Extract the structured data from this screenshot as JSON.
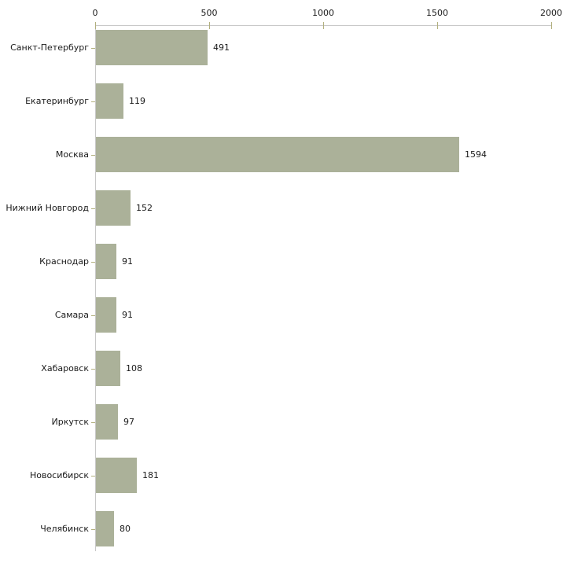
{
  "chart_data": {
    "type": "bar",
    "orientation": "horizontal",
    "title": "",
    "categories": [
      "Санкт-Петербург",
      "Екатеринбург",
      "Москва",
      "Нижний Новгород",
      "Краснодар",
      "Самара",
      "Хабаровск",
      "Иркутск",
      "Новосибирск",
      "Челябинск"
    ],
    "values": [
      491,
      119,
      1594,
      152,
      91,
      91,
      108,
      97,
      181,
      80
    ],
    "xlim": [
      0,
      2000
    ],
    "xticks": [
      0,
      500,
      1000,
      1500,
      2000
    ],
    "xtick_labels": [
      "0",
      "500",
      "1000",
      "1500",
      "2000"
    ],
    "axis_position": "top",
    "grid": false,
    "legend": false,
    "colors": {
      "bar_fill": "#abb199",
      "axis_line": "#c8c8c8",
      "tick_mark": "#b2b07e",
      "text": "#1a1a1a",
      "background": "#ffffff"
    }
  }
}
